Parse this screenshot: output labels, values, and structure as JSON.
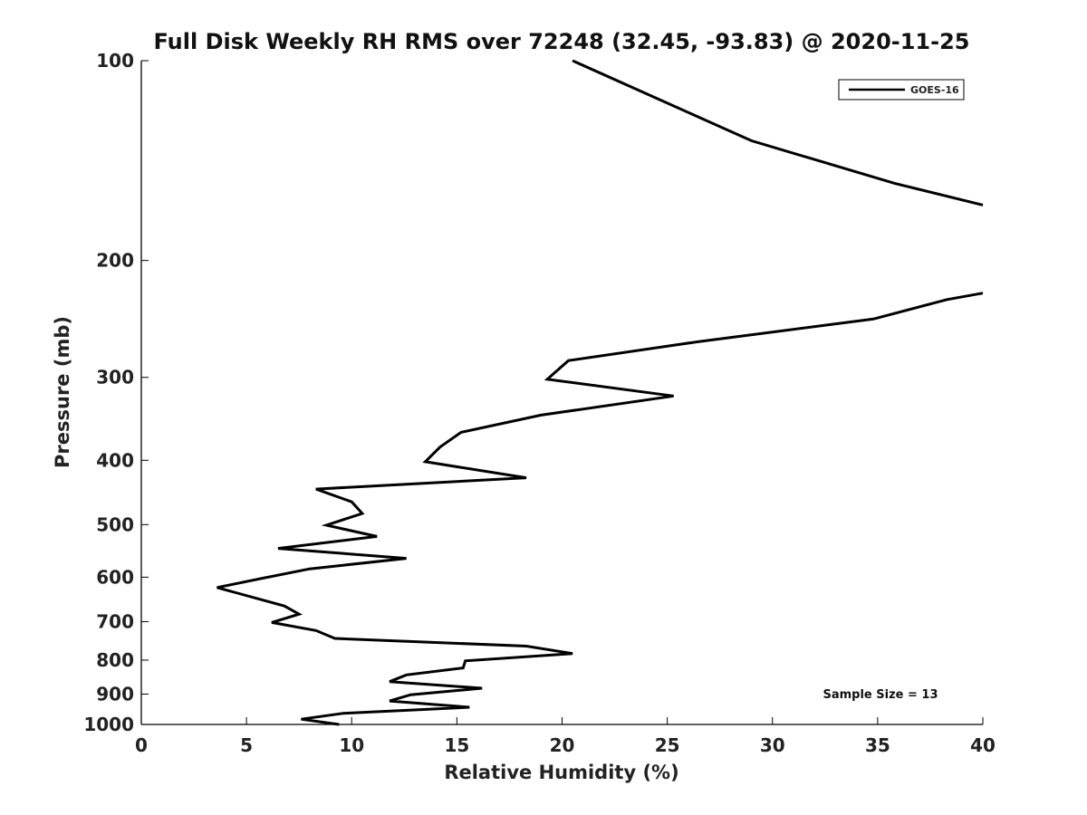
{
  "chart_data": {
    "type": "line",
    "title": "Full Disk Weekly RH RMS over 72248 (32.45, -93.83) @ 2020-11-25",
    "xlabel": "Relative Humidity (%)",
    "ylabel": "Pressure (mb)",
    "xlim": [
      0,
      40
    ],
    "ylim": [
      100,
      1000
    ],
    "y_scale": "log",
    "y_reversed": true,
    "grid": false,
    "legend_position": "top-right",
    "xticks": [
      "0",
      "5",
      "10",
      "15",
      "20",
      "25",
      "30",
      "35",
      "40"
    ],
    "yticks": [
      "100",
      "200",
      "300",
      "400",
      "500",
      "600",
      "700",
      "800",
      "900",
      "1000"
    ],
    "series": [
      {
        "name": "GOES-16",
        "color": "#000000",
        "segments": [
          [
            {
              "x": 20.5,
              "y": 100
            },
            {
              "x": 29.0,
              "y": 132
            },
            {
              "x": 35.8,
              "y": 153
            },
            {
              "x": 40.0,
              "y": 165
            }
          ],
          [
            {
              "x": 40.0,
              "y": 224
            },
            {
              "x": 38.3,
              "y": 229
            },
            {
              "x": 34.8,
              "y": 245
            },
            {
              "x": 26.5,
              "y": 265
            },
            {
              "x": 20.3,
              "y": 283
            },
            {
              "x": 19.3,
              "y": 302
            },
            {
              "x": 25.3,
              "y": 320
            },
            {
              "x": 19.0,
              "y": 342
            },
            {
              "x": 15.2,
              "y": 363
            },
            {
              "x": 14.2,
              "y": 382
            },
            {
              "x": 13.5,
              "y": 402
            },
            {
              "x": 18.3,
              "y": 425
            },
            {
              "x": 8.3,
              "y": 442
            },
            {
              "x": 10.0,
              "y": 462
            },
            {
              "x": 10.5,
              "y": 481
            },
            {
              "x": 8.8,
              "y": 501
            },
            {
              "x": 11.2,
              "y": 521
            },
            {
              "x": 6.5,
              "y": 543
            },
            {
              "x": 12.6,
              "y": 562
            },
            {
              "x": 8.0,
              "y": 583
            },
            {
              "x": 5.8,
              "y": 602
            },
            {
              "x": 3.6,
              "y": 622
            },
            {
              "x": 6.8,
              "y": 663
            },
            {
              "x": 7.5,
              "y": 682
            },
            {
              "x": 6.2,
              "y": 702
            },
            {
              "x": 8.3,
              "y": 722
            },
            {
              "x": 9.2,
              "y": 742
            },
            {
              "x": 18.3,
              "y": 762
            },
            {
              "x": 20.5,
              "y": 782
            },
            {
              "x": 15.4,
              "y": 802
            },
            {
              "x": 15.3,
              "y": 822
            },
            {
              "x": 12.6,
              "y": 842
            },
            {
              "x": 11.8,
              "y": 862
            },
            {
              "x": 16.2,
              "y": 882
            },
            {
              "x": 12.8,
              "y": 902
            },
            {
              "x": 11.8,
              "y": 922
            },
            {
              "x": 15.6,
              "y": 942
            },
            {
              "x": 9.6,
              "y": 962
            },
            {
              "x": 7.6,
              "y": 982
            },
            {
              "x": 9.4,
              "y": 1000
            }
          ]
        ]
      }
    ],
    "annotation": "Sample Size = 13"
  }
}
